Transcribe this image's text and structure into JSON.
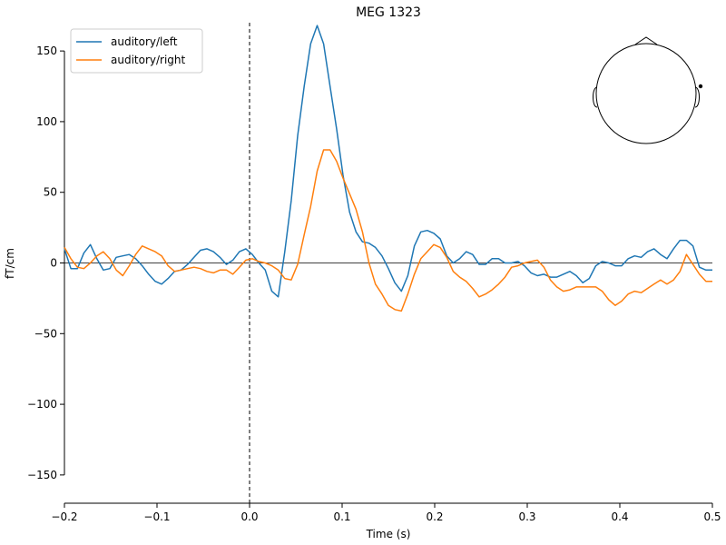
{
  "chart_data": {
    "type": "line",
    "title": "MEG 1323",
    "xlabel": "Time (s)",
    "ylabel": "fT/cm",
    "xlim": [
      -0.2,
      0.5
    ],
    "ylim": [
      -170,
      170
    ],
    "xticks": [
      -0.2,
      -0.1,
      0.0,
      0.1,
      0.2,
      0.3,
      0.4,
      0.5
    ],
    "xtick_labels": [
      "−0.2",
      "−0.1",
      "0.0",
      "0.1",
      "0.2",
      "0.3",
      "0.4",
      "0.5"
    ],
    "yticks": [
      -150,
      -100,
      -50,
      0,
      50,
      100,
      150
    ],
    "ytick_labels": [
      "−150",
      "−100",
      "−50",
      "0",
      "50",
      "100",
      "150"
    ],
    "legend_position": "top-left",
    "grid": false,
    "zero_line_y": 0,
    "event_line_x": 0.0,
    "series": [
      {
        "name": "auditory/left",
        "color": "#1f77b4",
        "x": [
          -0.2,
          -0.193,
          -0.186,
          -0.179,
          -0.172,
          -0.165,
          -0.158,
          -0.151,
          -0.144,
          -0.137,
          -0.13,
          -0.123,
          -0.116,
          -0.109,
          -0.102,
          -0.095,
          -0.088,
          -0.081,
          -0.074,
          -0.067,
          -0.06,
          -0.053,
          -0.046,
          -0.039,
          -0.032,
          -0.025,
          -0.018,
          -0.011,
          -0.004,
          0.003,
          0.01,
          0.017,
          0.024,
          0.031,
          0.038,
          0.045,
          0.052,
          0.059,
          0.066,
          0.073,
          0.08,
          0.087,
          0.094,
          0.101,
          0.108,
          0.115,
          0.122,
          0.129,
          0.136,
          0.143,
          0.15,
          0.157,
          0.164,
          0.171,
          0.178,
          0.185,
          0.192,
          0.199,
          0.206,
          0.213,
          0.22,
          0.227,
          0.234,
          0.241,
          0.248,
          0.255,
          0.262,
          0.269,
          0.276,
          0.283,
          0.29,
          0.297,
          0.304,
          0.311,
          0.318,
          0.325,
          0.332,
          0.339,
          0.346,
          0.353,
          0.36,
          0.367,
          0.374,
          0.381,
          0.388,
          0.395,
          0.402,
          0.409,
          0.416,
          0.423,
          0.43,
          0.437,
          0.444,
          0.451,
          0.458,
          0.465,
          0.472,
          0.479,
          0.486,
          0.493,
          0.5
        ],
        "values": [
          10,
          -4,
          -4,
          7,
          13,
          3,
          -5,
          -4,
          4,
          5,
          6,
          3,
          -2,
          -8,
          -13,
          -15,
          -11,
          -6,
          -5,
          -1,
          4,
          9,
          10,
          8,
          4,
          -1,
          2,
          8,
          10,
          6,
          0,
          -5,
          -20,
          -24,
          8,
          44,
          90,
          125,
          155,
          168,
          155,
          125,
          95,
          62,
          36,
          22,
          15,
          14,
          11,
          5,
          -4,
          -14,
          -20,
          -9,
          12,
          22,
          23,
          21,
          17,
          5,
          0,
          3,
          8,
          6,
          -1,
          -1,
          3,
          3,
          0,
          0,
          1,
          -2,
          -7,
          -9,
          -8,
          -10,
          -10,
          -8,
          -6,
          -9,
          -14,
          -11,
          -2,
          1,
          0,
          -2,
          -2,
          3,
          5,
          4,
          8,
          10,
          6,
          3,
          10,
          16,
          16,
          12,
          -3,
          -5,
          -5
        ]
      },
      {
        "name": "auditory/right",
        "color": "#ff7f0e",
        "x": [
          -0.2,
          -0.193,
          -0.186,
          -0.179,
          -0.172,
          -0.165,
          -0.158,
          -0.151,
          -0.144,
          -0.137,
          -0.13,
          -0.123,
          -0.116,
          -0.109,
          -0.102,
          -0.095,
          -0.088,
          -0.081,
          -0.074,
          -0.067,
          -0.06,
          -0.053,
          -0.046,
          -0.039,
          -0.032,
          -0.025,
          -0.018,
          -0.011,
          -0.004,
          0.003,
          0.01,
          0.017,
          0.024,
          0.031,
          0.038,
          0.045,
          0.052,
          0.059,
          0.066,
          0.073,
          0.08,
          0.087,
          0.094,
          0.101,
          0.108,
          0.115,
          0.122,
          0.129,
          0.136,
          0.143,
          0.15,
          0.157,
          0.164,
          0.171,
          0.178,
          0.185,
          0.192,
          0.199,
          0.206,
          0.213,
          0.22,
          0.227,
          0.234,
          0.241,
          0.248,
          0.255,
          0.262,
          0.269,
          0.276,
          0.283,
          0.29,
          0.297,
          0.304,
          0.311,
          0.318,
          0.325,
          0.332,
          0.339,
          0.346,
          0.353,
          0.36,
          0.367,
          0.374,
          0.381,
          0.388,
          0.395,
          0.402,
          0.409,
          0.416,
          0.423,
          0.43,
          0.437,
          0.444,
          0.451,
          0.458,
          0.465,
          0.472,
          0.479,
          0.486,
          0.493,
          0.5
        ],
        "values": [
          11,
          3,
          -3,
          -4,
          0,
          5,
          8,
          3,
          -5,
          -9,
          -2,
          6,
          12,
          10,
          8,
          5,
          -2,
          -6,
          -5,
          -4,
          -3,
          -4,
          -6,
          -7,
          -5,
          -5,
          -8,
          -3,
          2,
          3,
          1,
          0,
          -2,
          -5,
          -11,
          -12,
          -1,
          20,
          40,
          65,
          80,
          80,
          72,
          60,
          49,
          38,
          22,
          0,
          -15,
          -22,
          -30,
          -33,
          -34,
          -22,
          -8,
          3,
          8,
          13,
          11,
          4,
          -6,
          -10,
          -13,
          -18,
          -24,
          -22,
          -19,
          -15,
          -10,
          -3,
          -2,
          0,
          1,
          2,
          -3,
          -12,
          -17,
          -20,
          -19,
          -17,
          -17,
          -17,
          -17,
          -20,
          -26,
          -30,
          -27,
          -22,
          -20,
          -21,
          -18,
          -15,
          -12,
          -15,
          -12,
          -6,
          6,
          -1,
          -8,
          -13,
          -13
        ]
      }
    ]
  }
}
